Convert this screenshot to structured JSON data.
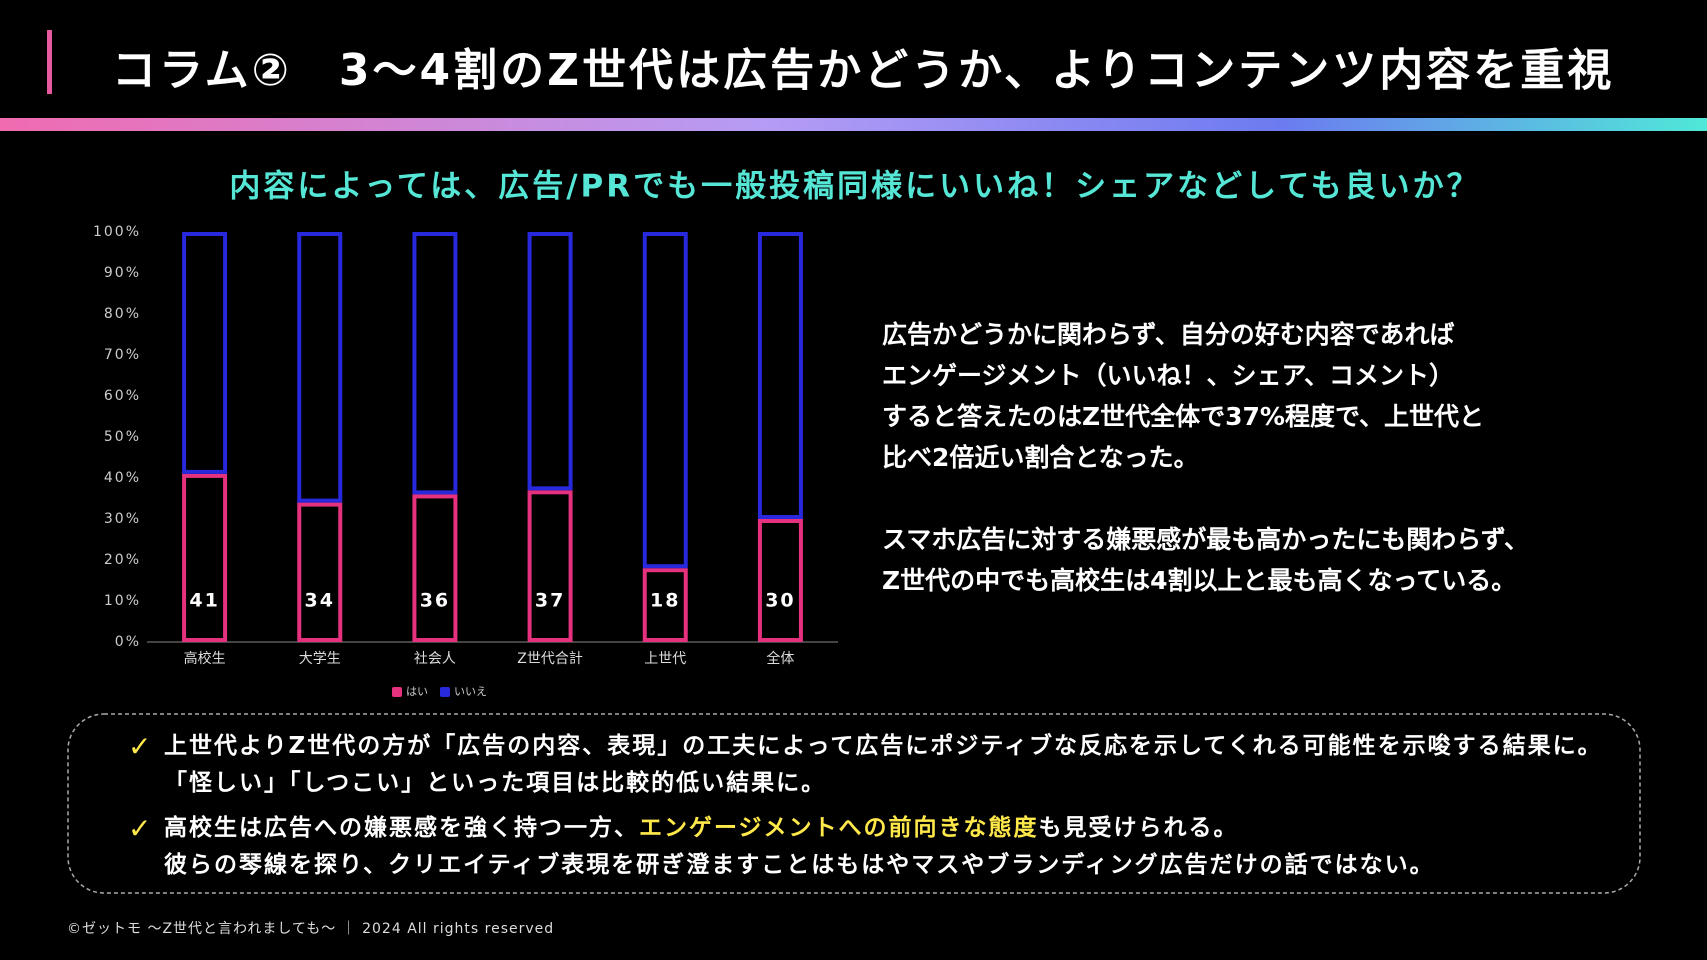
{
  "header": {
    "title": "コラム②　3～4割のZ世代は広告かどうか、よりコンテンツ内容を重視"
  },
  "chart_data": {
    "type": "stacked_bar",
    "title": "内容によっては、広告/PRでも一般投稿同様にいいね！シェアなどしても良いか？",
    "categories": [
      "高校生",
      "大学生",
      "社会人",
      "Z世代合計",
      "上世代",
      "全体"
    ],
    "series": [
      {
        "name": "はい",
        "color": "#e6317f",
        "values": [
          41,
          34,
          36,
          37,
          18,
          30
        ]
      },
      {
        "name": "いいえ",
        "color": "#2828dc",
        "values": [
          59,
          66,
          64,
          63,
          82,
          70
        ]
      }
    ],
    "ylim": [
      0,
      100
    ],
    "yticks": [
      {
        "value": 0,
        "label": "0%"
      },
      {
        "value": 10,
        "label": "10%"
      },
      {
        "value": 20,
        "label": "20%"
      },
      {
        "value": 30,
        "label": "30%"
      },
      {
        "value": 40,
        "label": "40%"
      },
      {
        "value": 50,
        "label": "50%"
      },
      {
        "value": 60,
        "label": "60%"
      },
      {
        "value": 70,
        "label": "70%"
      },
      {
        "value": 80,
        "label": "80%"
      },
      {
        "value": 90,
        "label": "90%"
      },
      {
        "value": 100,
        "label": "100%"
      }
    ],
    "legend": "bottom"
  },
  "body": {
    "paragraphs": [
      [
        "広告かどうかに関わらず、自分の好む内容であれば",
        "エンゲージメント（いいね！、シェア、コメント）",
        "すると答えたのはZ世代全体で37%程度で、上世代と",
        "比べ2倍近い割合となった。"
      ],
      [
        "スマホ広告に対する嫌悪感が最も高かったにも関わらず、",
        "Z世代の中でも高校生は4割以上と最も高くなっている。"
      ]
    ]
  },
  "notes": [
    {
      "lines": [
        [
          "上世代よりZ世代の方が「広告の内容、表現」の工夫によって広告にポジティブな反応を示してくれる可能性を示唆する結果に。"
        ],
        [
          "「怪しい」「しつこい」といった項目は比較的低い結果に。"
        ]
      ]
    },
    {
      "lines": [
        [
          "高校生は広告への嫌悪感を強く持つ一方、",
          "エンゲージメントへの前向きな態度",
          "も見受けられる。"
        ],
        [
          "彼らの琴線を探り、クリエイティブ表現を研ぎ澄ますことはもはやマスやブランディング広告だけの話ではない。"
        ]
      ]
    }
  ],
  "footer": "©ゼットモ ～Z世代と言われましても～ ｜ 2024 All rights reserved"
}
